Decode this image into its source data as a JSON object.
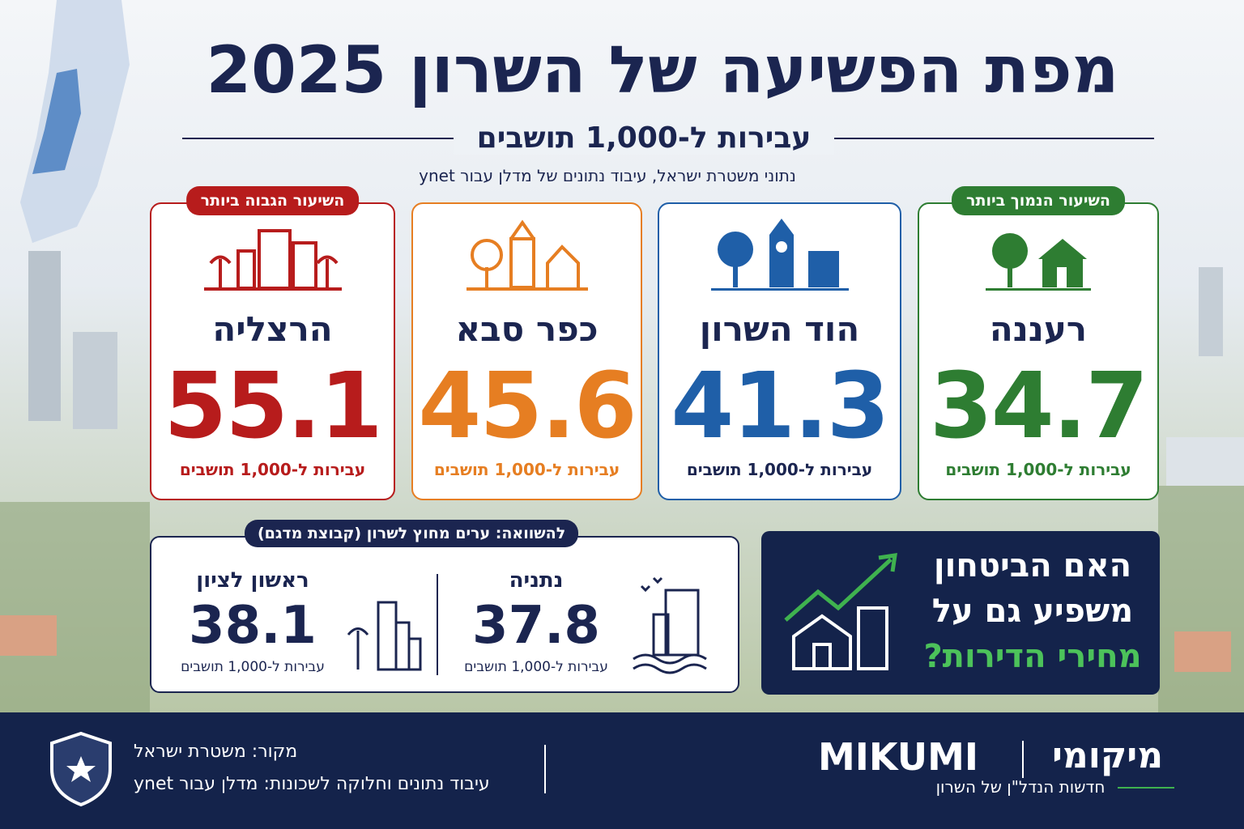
{
  "header": {
    "title": "מפת הפשיעה של השרון 2025",
    "subtitle": "עבירות ל-1,000 תושבים",
    "source": "נתוני משטרת ישראל, עיבוד נתונים של מדלן עבור ynet"
  },
  "cards": [
    {
      "badge": "השיעור הנמוך ביותר",
      "city": "רעננה",
      "value": "34.7",
      "unit": "עבירות ל-1,000 תושבים"
    },
    {
      "city": "הוד השרון",
      "value": "41.3",
      "unit": "עבירות ל-1,000 תושבים"
    },
    {
      "city": "כפר סבא",
      "value": "45.6",
      "unit": "עבירות ל-1,000 תושבים"
    },
    {
      "badge": "השיעור הגבוה ביותר",
      "city": "הרצליה",
      "value": "55.1",
      "unit": "עבירות ל-1,000 תושבים"
    }
  ],
  "comparison": {
    "title": "להשוואה: ערים מחוץ לשרון (קבוצת מדגם)",
    "items": [
      {
        "city": "נתניה",
        "value": "37.8",
        "unit": "עבירות ל-1,000 תושבים"
      },
      {
        "city": "ראשון לציון",
        "value": "38.1",
        "unit": "עבירות ל-1,000 תושבים"
      }
    ]
  },
  "question": {
    "lines": [
      "האם הביטחון",
      "משפיע גם על",
      "מחירי הדירות?"
    ]
  },
  "footer": {
    "source": "מקור: משטרת ישראל",
    "processing": "עיבוד נתונים וחלוקה לשכונות: מדלן עבור ynet",
    "brand": "MIKUMI",
    "brand_hebrew": "מיקומי",
    "tagline": "חדשות הנדל\"ן של השרון"
  }
}
